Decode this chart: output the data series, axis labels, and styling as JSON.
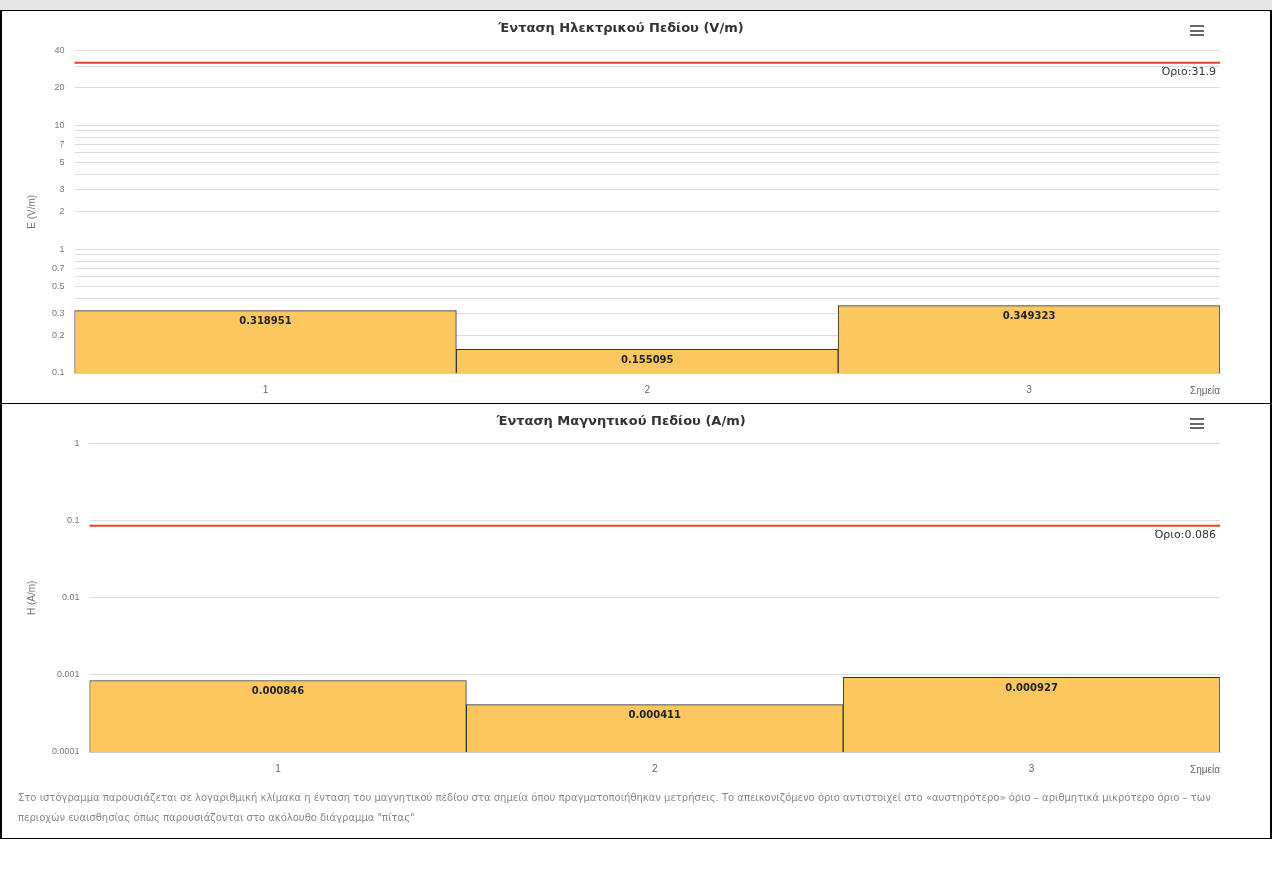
{
  "chart_data": [
    {
      "type": "bar",
      "title": "Ένταση Ηλεκτρικού Πεδίου (V/m)",
      "xlabel": "Σημεία",
      "ylabel": "E (V/m)",
      "categories": [
        "1",
        "2",
        "3"
      ],
      "values": [
        0.318951,
        0.155095,
        0.349323
      ],
      "color": "#fcc75e",
      "log": "y",
      "ylim": [
        0.1,
        40
      ],
      "yticks": [
        0.1,
        0.2,
        0.3,
        {
          "value": 0.4,
          "label": null
        },
        0.5,
        {
          "value": 0.6,
          "label": null
        },
        0.7,
        {
          "value": 0.8,
          "label": null
        },
        {
          "value": 0.9,
          "label": null
        },
        1,
        2,
        3,
        {
          "value": 4,
          "label": null
        },
        5,
        {
          "value": 6,
          "label": null
        },
        7,
        {
          "value": 8,
          "label": null
        },
        {
          "value": 9,
          "label": null
        },
        10,
        20,
        {
          "value": 30,
          "label": null
        },
        40
      ],
      "ref_lines": [
        {
          "axis": "y",
          "value": 31.9,
          "label": "Όριο:31.9",
          "color": "#e0442a"
        }
      ],
      "data_labels": true,
      "grid": "y"
    },
    {
      "type": "bar",
      "title": "Ένταση Μαγνητικού Πεδίου (A/m)",
      "xlabel": "Σημεία",
      "ylabel": "H (A/m)",
      "categories": [
        "1",
        "2",
        "3"
      ],
      "values": [
        0.000846,
        0.000411,
        0.000927
      ],
      "color": "#fcc75e",
      "log": "y",
      "ylim": [
        0.0001,
        1
      ],
      "yticks": [
        0.0001,
        0.001,
        0.01,
        0.1,
        1
      ],
      "ref_lines": [
        {
          "axis": "y",
          "value": 0.086,
          "label": "Όριο:0.086",
          "color": "#e0442a"
        }
      ],
      "data_labels": true,
      "grid": "y",
      "annotations": [
        "Στο ιστόγραμμα παρουσιάζεται σε λογαριθμική κλίμακα η ένταση του μαγνητικού πεδίου στα σημεία όπου πραγματοποιήθηκαν μετρήσεις. Το απεικονιζόμενο όριο αντιστοιχεί στο «αυστηρότερο» όριο – αριθμητικά μικρότερο όριο – των περιοχών ευαισθησίας όπως παρουσιάζονται στο ακόλουθο διάγραμμα \"πίτας\""
      ]
    }
  ]
}
